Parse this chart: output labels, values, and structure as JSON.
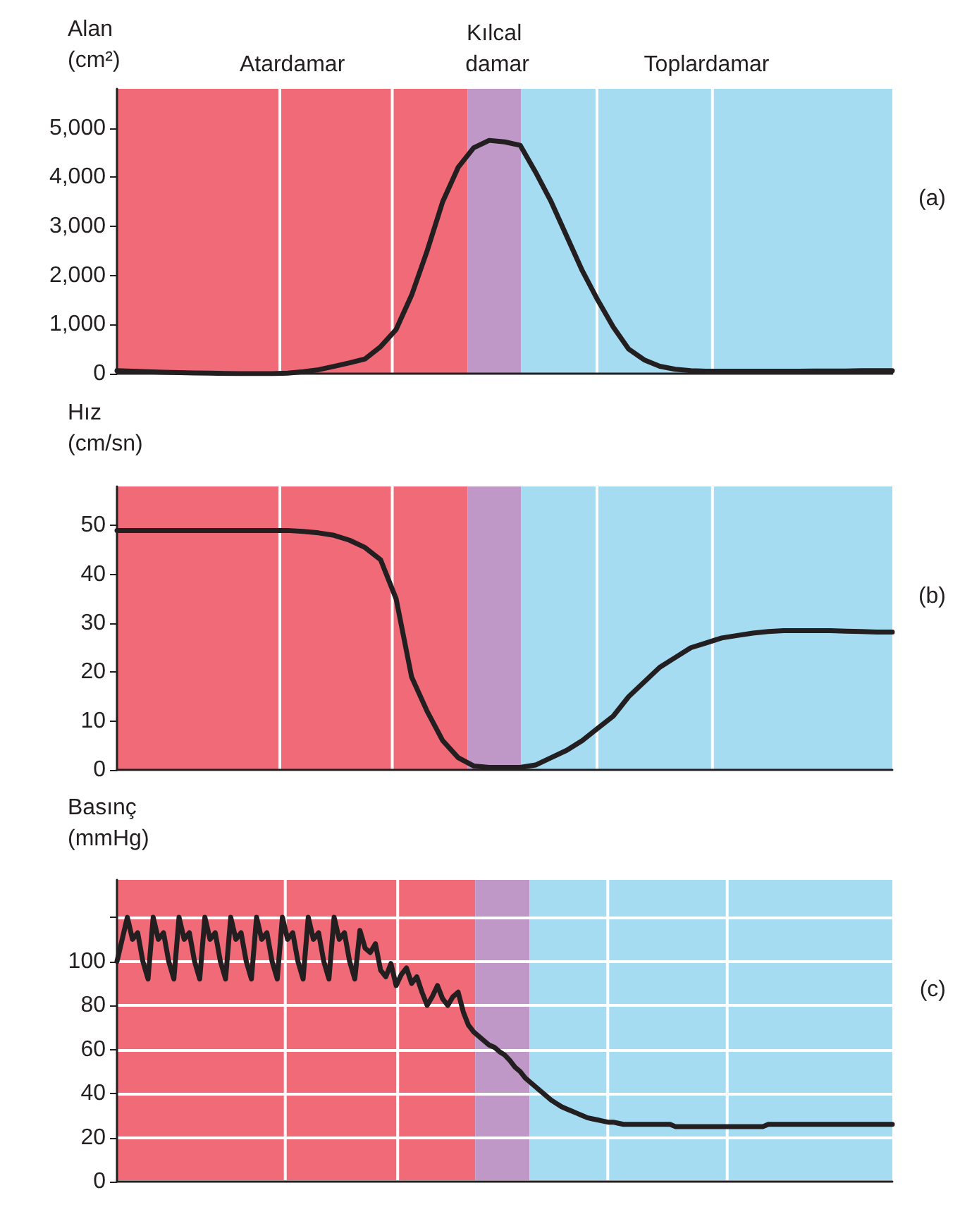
{
  "chart_data": [
    {
      "type": "line",
      "ylabel": "Alan (cm²)",
      "annotations": [
        "Atardamar",
        "Kılcal damar",
        "Toplardamar",
        "(a)"
      ],
      "categories": [
        null,
        null,
        null,
        null,
        null,
        null,
        null,
        null,
        null,
        null,
        null,
        null,
        null,
        null,
        null,
        null,
        null,
        null,
        null,
        null,
        null,
        null,
        null,
        null,
        null,
        null,
        null,
        null,
        null,
        null,
        null,
        null,
        null,
        null,
        null,
        null,
        null,
        null,
        null,
        null,
        null,
        null,
        null,
        null,
        null,
        null,
        null,
        null,
        null,
        null,
        null
      ],
      "ylim": [
        0,
        5800
      ],
      "yticks": [
        0,
        {
          "value": 1000,
          "label": "1,000"
        },
        {
          "value": 2000,
          "label": "2,000"
        },
        {
          "value": 3000,
          "label": "3,000"
        },
        {
          "value": 4000,
          "label": "4,000"
        },
        {
          "value": 5000,
          "label": "5,000"
        }
      ],
      "grid": false,
      "tick_labels": "y",
      "marker": "none",
      "line_style": "solid",
      "series": [
        {
          "color": "#231f20",
          "values": [
            60,
            50,
            40,
            30,
            20,
            15,
            10,
            5,
            0,
            0,
            0,
            10,
            40,
            80,
            150,
            220,
            300,
            550,
            900,
            1600,
            2500,
            3500,
            4200,
            4600,
            4750,
            4720,
            4650,
            4100,
            3500,
            2800,
            2100,
            1500,
            950,
            500,
            280,
            150,
            90,
            60,
            50,
            50,
            50,
            50,
            50,
            50,
            50,
            55,
            55,
            55,
            60,
            60,
            60
          ]
        }
      ]
    },
    {
      "type": "line",
      "ylabel": "Hız (cm/sn)",
      "annotations": [
        "(b)"
      ],
      "categories": [
        null,
        null,
        null,
        null,
        null,
        null,
        null,
        null,
        null,
        null,
        null,
        null,
        null,
        null,
        null,
        null,
        null,
        null,
        null,
        null,
        null,
        null,
        null,
        null,
        null,
        null,
        null,
        null,
        null,
        null,
        null,
        null,
        null,
        null,
        null,
        null,
        null,
        null,
        null,
        null,
        null,
        null,
        null,
        null,
        null,
        null,
        null,
        null,
        null,
        null,
        null
      ],
      "ylim": [
        0,
        58
      ],
      "yticks": [
        0,
        10,
        20,
        30,
        40,
        50
      ],
      "grid": false,
      "tick_labels": "y",
      "marker": "none",
      "line_style": "solid",
      "series": [
        {
          "color": "#231f20",
          "values": [
            49,
            49,
            49,
            49,
            49,
            49,
            49,
            49,
            49,
            49,
            49,
            49,
            48.8,
            48.5,
            48,
            47,
            45.5,
            43,
            35,
            19,
            12,
            6,
            2.5,
            0.8,
            0.5,
            0.5,
            0.5,
            1,
            2.5,
            4,
            6,
            8.5,
            11,
            15,
            18,
            21,
            23,
            25,
            26,
            27,
            27.5,
            28,
            28.3,
            28.5,
            28.5,
            28.5,
            28.5,
            28.4,
            28.3,
            28.2,
            28.2
          ]
        }
      ]
    },
    {
      "type": "line",
      "ylabel": "Basınç (mmHg)",
      "annotations": [
        "(c)"
      ],
      "categories": [
        null,
        null,
        null,
        null,
        null,
        null,
        null,
        null,
        null,
        null,
        null,
        null,
        null,
        null,
        null,
        null,
        null,
        null,
        null,
        null,
        null,
        null,
        null,
        null,
        null,
        null,
        null,
        null,
        null,
        null,
        null,
        null,
        null,
        null,
        null,
        null,
        null,
        null,
        null,
        null,
        null,
        null,
        null,
        null,
        null,
        null,
        null,
        null,
        null,
        null,
        null,
        null,
        null,
        null,
        null,
        null,
        null,
        null,
        null,
        null,
        null,
        null,
        null,
        null,
        null,
        null,
        null,
        null,
        null,
        null,
        null,
        null,
        null,
        null,
        null,
        null,
        null,
        null,
        null,
        null,
        null,
        null,
        null,
        null,
        null,
        null,
        null,
        null,
        null,
        null,
        null,
        null,
        null,
        null,
        null,
        null,
        null,
        null,
        null,
        null,
        null,
        null,
        null,
        null,
        null,
        null,
        null,
        null,
        null,
        null,
        null,
        null,
        null,
        null,
        null,
        null,
        null,
        null,
        null,
        null,
        null,
        null,
        null,
        null,
        null,
        null,
        null,
        null,
        null,
        null,
        null,
        null,
        null,
        null,
        null,
        null,
        null,
        null,
        null,
        null,
        null,
        null,
        null,
        null,
        null,
        null,
        null,
        null,
        null,
        null,
        null
      ],
      "ylim": [
        0,
        137
      ],
      "yticks": [
        0,
        20,
        40,
        60,
        80,
        100,
        {
          "value": 120,
          "label": null
        }
      ],
      "grid": "y",
      "tick_labels": "y",
      "marker": "none",
      "line_style": "solid",
      "series": [
        {
          "color": "#231f20",
          "values": [
            100,
            110,
            120,
            110,
            113,
            100,
            92,
            120,
            110,
            113,
            100,
            92,
            120,
            110,
            113,
            100,
            92,
            120,
            110,
            113,
            100,
            92,
            120,
            110,
            113,
            100,
            92,
            120,
            110,
            113,
            100,
            92,
            120,
            110,
            113,
            100,
            92,
            120,
            110,
            113,
            100,
            92,
            120,
            110,
            113,
            100,
            92,
            114,
            106,
            104,
            108,
            96,
            93,
            99,
            89,
            94,
            97,
            90,
            93,
            86,
            80,
            84,
            89,
            83,
            80,
            84,
            86,
            77,
            71,
            68,
            66,
            64,
            62,
            61,
            59,
            57.5,
            55,
            52,
            50,
            47,
            45,
            43,
            41,
            39,
            37,
            35.5,
            34,
            33,
            32,
            31,
            30,
            29,
            28.5,
            28,
            27.5,
            27,
            27,
            26.5,
            26,
            26,
            26,
            26,
            26,
            26,
            26,
            26,
            26,
            26,
            25,
            25,
            25,
            25,
            25,
            25,
            25,
            25,
            25,
            25,
            25,
            25,
            25,
            25,
            25,
            25,
            25,
            25,
            26,
            26,
            26,
            26,
            26,
            26,
            26,
            26,
            26,
            26,
            26,
            26,
            26,
            26,
            26,
            26,
            26,
            26,
            26,
            26,
            26,
            26,
            26,
            26,
            26
          ]
        }
      ]
    }
  ]
}
